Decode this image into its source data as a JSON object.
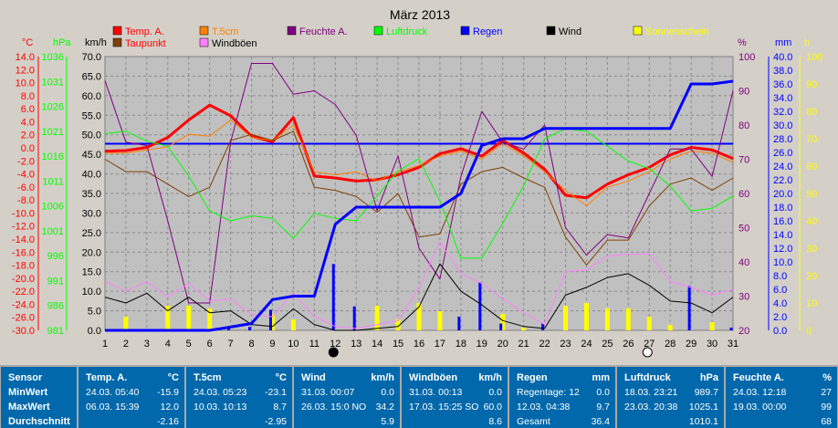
{
  "chart_data": {
    "type": "line",
    "title": "März 2013",
    "x": [
      1,
      2,
      3,
      4,
      5,
      6,
      7,
      8,
      9,
      10,
      11,
      12,
      13,
      14,
      15,
      16,
      17,
      18,
      19,
      20,
      21,
      22,
      23,
      24,
      25,
      26,
      27,
      28,
      29,
      30,
      31
    ],
    "legend": [
      {
        "name": "Temp. A.",
        "color": "#ff0000"
      },
      {
        "name": "T.5cm",
        "color": "#ff8000"
      },
      {
        "name": "Feuchte A.",
        "color": "#800080"
      },
      {
        "name": "Luftdruck",
        "color": "#00ff00"
      },
      {
        "name": "Regen",
        "color": "#0000ff"
      },
      {
        "name": "Wind",
        "color": "#000000"
      },
      {
        "name": "Sonnenschein",
        "color": "#ffff00"
      },
      {
        "name": "Taupunkt",
        "color": "#804000"
      },
      {
        "name": "Windböen",
        "color": "#ff80ff"
      }
    ],
    "axes": {
      "temp": {
        "label": "°C",
        "color": "#ff0000",
        "min": -30,
        "max": 14,
        "ticks": [
          "14.0",
          "12.0",
          "10.0",
          "8.0",
          "6.0",
          "4.0",
          "2.0",
          "0.0",
          "-2.0",
          "-4.0",
          "-6.0",
          "-8.0",
          "-10.0",
          "-12.0",
          "-14.0",
          "-16.0",
          "-18.0",
          "-20.0",
          "-22.0",
          "-24.0",
          "-26.0",
          "-30.0"
        ]
      },
      "pressure": {
        "label": "hPa",
        "color": "#00ff00",
        "min": 981,
        "max": 1036,
        "ticks": [
          "1036",
          "1031",
          "1026",
          "1021",
          "1016",
          "1011",
          "1006",
          "1001",
          "996",
          "991",
          "986",
          "981"
        ]
      },
      "wind": {
        "label": "km/h",
        "color": "#000000",
        "min": 0,
        "max": 70,
        "ticks": [
          "70.0",
          "65.0",
          "60.0",
          "55.0",
          "50.0",
          "45.0",
          "40.0",
          "35.0",
          "30.0",
          "25.0",
          "20.0",
          "15.0",
          "10.0",
          "5.0",
          "0.0"
        ]
      },
      "humidity": {
        "label": "%",
        "color": "#800080",
        "min": 20,
        "max": 100,
        "ticks": [
          "100",
          "90",
          "80",
          "70",
          "60",
          "50",
          "40",
          "30",
          "20"
        ]
      },
      "rain": {
        "label": "mm",
        "color": "#0000ff",
        "min": 0,
        "max": 40,
        "ticks": [
          "40.0",
          "38.0",
          "36.0",
          "34.0",
          "32.0",
          "30.0",
          "28.0",
          "26.0",
          "24.0",
          "22.0",
          "20.0",
          "18.0",
          "16.0",
          "14.0",
          "12.0",
          "10.0",
          "8.0",
          "6.0",
          "4.0",
          "2.0",
          "0.0"
        ]
      },
      "sun": {
        "label": "h",
        "color": "#ffff00",
        "min": 0,
        "max": 100,
        "ticks": [
          "100",
          "90",
          "80",
          "70",
          "60",
          "50",
          "40",
          "30",
          "20",
          "10",
          "0"
        ]
      }
    },
    "series": [
      {
        "name": "Temp. A.",
        "axis": "temp",
        "color": "#ff0000",
        "values": [
          -1.2,
          -1.1,
          -0.6,
          1.0,
          3.8,
          6.2,
          4.5,
          1.2,
          0.3,
          4.2,
          -5.2,
          -5.5,
          -6.0,
          -5.8,
          -5.0,
          -3.8,
          -1.6,
          -0.8,
          -2.0,
          0.5,
          -1.5,
          -4.1,
          -8.3,
          -8.7,
          -6.5,
          -5.0,
          -3.8,
          -1.8,
          -0.6,
          -1.0,
          -2.4
        ]
      },
      {
        "name": "T.5cm",
        "axis": "temp",
        "color": "#ff8000",
        "values": [
          -1.5,
          -1.5,
          -1.0,
          -0.5,
          1.5,
          1.2,
          3.8,
          1.0,
          0.5,
          3.0,
          -4.5,
          -5.0,
          -4.5,
          -6.0,
          -4.5,
          -3.5,
          -2.0,
          -1.2,
          -2.5,
          0.0,
          -2.0,
          -4.5,
          -7.5,
          -10.0,
          -7.0,
          -6.0,
          -4.5,
          -2.5,
          -1.2,
          -1.5,
          -3.0
        ]
      },
      {
        "name": "Taupunkt",
        "axis": "temp",
        "color": "#804000",
        "values": [
          -2.5,
          -4.5,
          -4.5,
          -6.5,
          -8.5,
          -7.0,
          0.5,
          1.5,
          0.5,
          2.0,
          -7.0,
          -7.5,
          -8.5,
          -11.0,
          -8.0,
          -15.0,
          -14.5,
          -6.5,
          -4.5,
          -3.8,
          -5.5,
          -7.0,
          -15.0,
          -19.5,
          -15.5,
          -15.5,
          -10.0,
          -6.5,
          -5.5,
          -7.5,
          -5.5
        ]
      },
      {
        "name": "Feuchte A.",
        "axis": "humidity",
        "color": "#800080",
        "values": [
          93,
          75,
          74,
          52,
          28,
          28,
          75,
          98,
          98,
          89,
          90,
          86,
          77,
          55,
          71,
          44,
          35,
          65,
          84,
          75,
          73,
          80,
          50,
          42,
          48,
          47,
          60,
          73,
          73,
          65,
          90
        ]
      },
      {
        "name": "Luftdruck",
        "axis": "pressure",
        "color": "#00ff00",
        "values": [
          1020.5,
          1021.0,
          1019.0,
          1018.0,
          1012.0,
          1005.0,
          1003.0,
          1004.0,
          1003.5,
          999.5,
          1004.5,
          1003.5,
          1003.0,
          1008.0,
          1013.0,
          1015.5,
          1007.0,
          995.5,
          995.5,
          1002.5,
          1010.0,
          1019.5,
          1021.5,
          1021.0,
          1018.0,
          1015.0,
          1013.5,
          1010.0,
          1005.0,
          1005.5,
          1008.0
        ]
      },
      {
        "name": "Wind",
        "axis": "wind",
        "color": "#000000",
        "values": [
          8.5,
          7.0,
          9.5,
          5.0,
          8.5,
          4.5,
          5.0,
          1.5,
          1.0,
          5.5,
          1.5,
          0.0,
          0.0,
          0.5,
          1.0,
          6.0,
          17.0,
          10.0,
          6.5,
          2.5,
          1.0,
          0.5,
          9.0,
          11.0,
          13.5,
          14.5,
          11.5,
          7.5,
          7.0,
          4.5,
          8.5
        ]
      },
      {
        "name": "Windböen",
        "axis": "wind",
        "color": "#ff80ff",
        "values": [
          12.5,
          10.0,
          12.5,
          8.5,
          12.0,
          7.5,
          8.0,
          4.0,
          3.5,
          9.5,
          3.5,
          1.0,
          0.5,
          1.5,
          2.5,
          11.0,
          22.5,
          14.5,
          12.0,
          8.0,
          4.5,
          1.5,
          15.0,
          15.5,
          19.0,
          19.5,
          19.5,
          12.5,
          11.0,
          9.0,
          10.5
        ]
      },
      {
        "name": "Regen",
        "axis": "rain",
        "color": "#0000ff",
        "values": [
          0,
          0,
          0,
          0,
          0,
          0,
          0.5,
          1.0,
          4.5,
          5.0,
          5.0,
          15.5,
          18.0,
          18.0,
          18.0,
          18.0,
          18.0,
          20.0,
          27.0,
          28.0,
          28.0,
          29.5,
          29.5,
          29.5,
          29.5,
          29.5,
          29.5,
          29.5,
          36.0,
          36.0,
          36.4
        ]
      }
    ],
    "daily_rain": {
      "axis": "rain",
      "color": "#0000ff",
      "values": [
        0,
        0,
        0,
        0,
        0,
        0,
        0.5,
        0.5,
        3.0,
        0.0,
        0,
        9.7,
        3.5,
        0,
        0,
        0,
        0,
        2.0,
        7.0,
        1.0,
        0,
        1.0,
        0,
        0,
        0,
        0,
        0,
        0,
        6.5,
        0,
        0.4
      ]
    },
    "sunshine": {
      "axis": "sun",
      "color": "#ffff00",
      "values": [
        0,
        5,
        0,
        9,
        9,
        8,
        0,
        0,
        6,
        4,
        0,
        0,
        0,
        9,
        4,
        10,
        7,
        0,
        0,
        6,
        1,
        0,
        9,
        10,
        8,
        8,
        5,
        2,
        0,
        3,
        0
      ]
    },
    "reference_line": {
      "axis": "temp",
      "value": 0.0,
      "color": "#0000ff"
    },
    "moon_phases": [
      {
        "day": 12,
        "phase": "new"
      },
      {
        "day": 27,
        "phase": "full"
      }
    ],
    "grid": true
  },
  "stats": {
    "row_labels": [
      "Sensor",
      "MinWert",
      "MaxWert",
      "Durchschnitt"
    ],
    "blocks": [
      {
        "header": "Temp. A.",
        "unit": "°C",
        "min": {
          "time": "24.03.  05:40",
          "value": "-15.9"
        },
        "max": {
          "time": "06.03.  15:39",
          "value": "12.0"
        },
        "avg": "-2.16"
      },
      {
        "header": "T.5cm",
        "unit": "°C",
        "min": {
          "time": "24.03.  05:23",
          "value": "-23.1"
        },
        "max": {
          "time": "10.03.  10:13",
          "value": "8.7"
        },
        "avg": "-2.95"
      },
      {
        "header": "Wind",
        "unit": "km/h",
        "min": {
          "time": "31.03.  00:07",
          "value": "0.0"
        },
        "max": {
          "time": "26.03.  15:0 NO",
          "value": "34.2"
        },
        "avg": "5.9"
      },
      {
        "header": "Windböen",
        "unit": "km/h",
        "min": {
          "time": "31.03.  00:13",
          "value": "0.0"
        },
        "max": {
          "time": "17.03.  15:25 SO",
          "value": "60.0"
        },
        "avg": "8.6"
      },
      {
        "header": "Regen",
        "unit": "mm",
        "min": {
          "time": "Regentage: 12",
          "value": "0.0"
        },
        "max": {
          "time": "12.03.  04:38",
          "value": "9.7"
        },
        "avg": "36.4",
        "avg_label": "Gesamt"
      },
      {
        "header": "Luftdruck",
        "unit": "hPa",
        "min": {
          "time": "18.03.  23:21",
          "value": "989.7"
        },
        "max": {
          "time": "23.03.  20:38",
          "value": "1025.1"
        },
        "avg": "1010.1"
      },
      {
        "header": "Feuchte A.",
        "unit": "%",
        "min": {
          "time": "24.03.  12:18",
          "value": "27"
        },
        "max": {
          "time": "19.03.  00:00",
          "value": "99"
        },
        "avg": "68"
      }
    ]
  }
}
